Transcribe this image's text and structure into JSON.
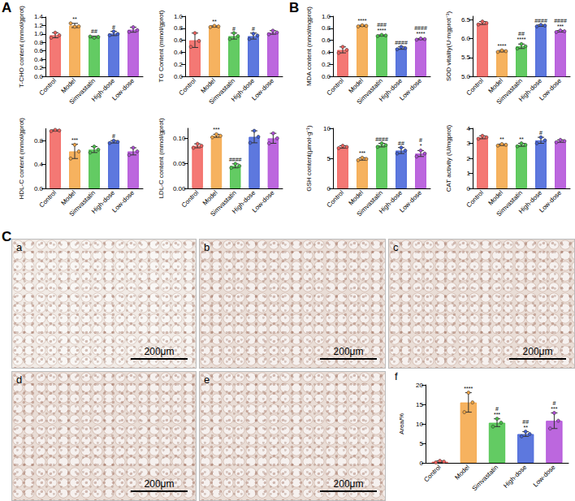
{
  "chart_data": [
    {
      "type": "bar",
      "ylabel": "T-CHO content (mmol/gprot)",
      "categories": [
        "Control",
        "Model",
        "Simvastatin",
        "High-dose",
        "Low-dose"
      ],
      "values": [
        0.97,
        1.2,
        0.93,
        1.01,
        1.1
      ],
      "errors": [
        0.06,
        0.05,
        0.02,
        0.05,
        0.06
      ],
      "points": [
        [
          0.91,
          1.03,
          0.97
        ],
        [
          1.25,
          1.17,
          1.18
        ],
        [
          0.94,
          0.91,
          0.93
        ],
        [
          0.97,
          1.06,
          1.0
        ],
        [
          1.05,
          1.16,
          1.09
        ]
      ],
      "annotations": [
        [],
        [
          "**"
        ],
        [
          "##"
        ],
        [
          "#"
        ],
        []
      ],
      "colors": [
        "#f2605c",
        "#f5a443",
        "#48c248",
        "#4160d8",
        "#b04cd8"
      ],
      "ylim": [
        0,
        1.4
      ],
      "yticks": [
        {
          "value": 0,
          "label": "0.0"
        },
        0.2,
        0.4,
        0.6,
        0.8,
        {
          "value": 1,
          "label": "1.0"
        },
        1.2,
        1.4
      ],
      "grid": false
    },
    {
      "type": "bar",
      "ylabel": "TG Content (mmol/gprot)",
      "categories": [
        "Control",
        "Model",
        "Simvastatin",
        "High-dose",
        "Low-dose"
      ],
      "values": [
        0.6,
        0.83,
        0.67,
        0.67,
        0.73
      ],
      "errors": [
        0.12,
        0.01,
        0.05,
        0.05,
        0.03
      ],
      "points": [
        [
          0.49,
          0.72,
          0.59
        ],
        [
          0.82,
          0.84,
          0.83
        ],
        [
          0.62,
          0.72,
          0.67
        ],
        [
          0.62,
          0.71,
          0.68
        ],
        [
          0.7,
          0.76,
          0.73
        ]
      ],
      "annotations": [
        [],
        [
          "**"
        ],
        [
          "#"
        ],
        [
          "#"
        ],
        []
      ],
      "colors": [
        "#f2605c",
        "#f5a443",
        "#48c248",
        "#4160d8",
        "#b04cd8"
      ],
      "ylim": [
        0,
        1.0
      ],
      "yticks": [
        {
          "value": 0,
          "label": "0.0"
        },
        0.2,
        0.4,
        0.6,
        0.8,
        {
          "value": 1,
          "label": "1.0"
        }
      ],
      "grid": false
    },
    {
      "type": "bar",
      "ylabel": "HDL-C content (mmol/gprot)",
      "categories": [
        "Control",
        "Model",
        "Simvastatin",
        "High-dose",
        "Low-dose"
      ],
      "values": [
        0.97,
        0.62,
        0.65,
        0.78,
        0.62
      ],
      "errors": [
        0.01,
        0.12,
        0.05,
        0.02,
        0.06
      ],
      "points": [
        [
          0.96,
          0.98,
          0.97
        ],
        [
          0.5,
          0.73,
          0.62
        ],
        [
          0.6,
          0.7,
          0.65
        ],
        [
          0.76,
          0.8,
          0.78
        ],
        [
          0.56,
          0.68,
          0.62
        ]
      ],
      "annotations": [
        [],
        [
          "***"
        ],
        [],
        [
          "#"
        ],
        []
      ],
      "colors": [
        "#f2605c",
        "#f5a443",
        "#48c248",
        "#4160d8",
        "#b04cd8"
      ],
      "ylim": [
        0,
        1.0
      ],
      "yticks": [
        {
          "value": 0,
          "label": "0.0"
        },
        0.4,
        0.8
      ],
      "grid": false
    },
    {
      "type": "bar",
      "ylabel": "LDL-C content (mmol/gprot)",
      "categories": [
        "Control",
        "Model",
        "Simvastatin",
        "High-dose",
        "Low-dose"
      ],
      "values": [
        0.085,
        0.105,
        0.045,
        0.103,
        0.1
      ],
      "errors": [
        0.004,
        0.003,
        0.004,
        0.012,
        0.01
      ],
      "points": [
        [
          0.081,
          0.089,
          0.085
        ],
        [
          0.102,
          0.108,
          0.105
        ],
        [
          0.041,
          0.049,
          0.045
        ],
        [
          0.091,
          0.115,
          0.103
        ],
        [
          0.09,
          0.11,
          0.1
        ]
      ],
      "annotations": [
        [],
        [
          "***"
        ],
        [
          "####"
        ],
        [],
        []
      ],
      "colors": [
        "#f2605c",
        "#f5a443",
        "#48c248",
        "#4160d8",
        "#b04cd8"
      ],
      "ylim": [
        0,
        0.12
      ],
      "yticks": [
        {
          "value": 0,
          "label": "0.00"
        },
        0.05,
        {
          "value": 0.1,
          "label": "0.10"
        }
      ],
      "grid": false
    },
    {
      "type": "bar",
      "ylabel": "MDA content (nmol/mgprot)",
      "categories": [
        "Control",
        "Model",
        "Simvastatin",
        "High-dose",
        "Low-dose"
      ],
      "values": [
        0.44,
        0.84,
        0.68,
        0.47,
        0.62
      ],
      "errors": [
        0.05,
        0.01,
        0.01,
        0.02,
        0.01
      ],
      "points": [
        [
          0.39,
          0.49,
          0.44
        ],
        [
          0.83,
          0.85,
          0.84
        ],
        [
          0.67,
          0.69,
          0.68
        ],
        [
          0.45,
          0.49,
          0.47
        ],
        [
          0.61,
          0.63,
          0.62
        ]
      ],
      "annotations": [
        [],
        [
          "****"
        ],
        [
          "###",
          "****"
        ],
        [
          "####"
        ],
        [
          "####",
          "****"
        ]
      ],
      "colors": [
        "#f2605c",
        "#f5a443",
        "#48c248",
        "#4160d8",
        "#b04cd8"
      ],
      "ylim": [
        0,
        1.0
      ],
      "yticks": [
        {
          "value": 0,
          "label": "0.0"
        },
        0.2,
        0.4,
        0.6,
        0.8,
        {
          "value": 1,
          "label": "1.0"
        }
      ],
      "grid": false
    },
    {
      "type": "bar",
      "ylabel": "SOD vitality(U·mgprot⁻¹)",
      "categories": [
        "Control",
        "Model",
        "Simvastatin",
        "High-dose",
        "Low-dose"
      ],
      "values": [
        6.42,
        5.67,
        5.8,
        6.35,
        6.2
      ],
      "errors": [
        0.04,
        0.02,
        0.06,
        0.02,
        0.02
      ],
      "points": [
        [
          6.38,
          6.46,
          6.42
        ],
        [
          5.65,
          5.69,
          5.67
        ],
        [
          5.74,
          5.86,
          5.8
        ],
        [
          6.33,
          6.37,
          6.35
        ],
        [
          6.18,
          6.22,
          6.2
        ]
      ],
      "annotations": [
        [],
        [
          "****"
        ],
        [
          "##",
          "****"
        ],
        [
          "####"
        ],
        [
          "####",
          "***"
        ]
      ],
      "colors": [
        "#f2605c",
        "#f5a443",
        "#48c248",
        "#4160d8",
        "#b04cd8"
      ],
      "ylim": [
        5,
        6.6
      ],
      "yticks": [
        {
          "value": 5,
          "label": "5.0"
        },
        5.5,
        {
          "value": 6,
          "label": "6.0"
        },
        6.5
      ],
      "grid": false
    },
    {
      "type": "bar",
      "ylabel": "GSH content(μmol·g⁻¹)",
      "categories": [
        "Control",
        "Model",
        "Simvastatin",
        "High-dose",
        "Low-dose"
      ],
      "values": [
        6.9,
        4.9,
        7.2,
        6.3,
        5.8
      ],
      "errors": [
        0.2,
        0.2,
        0.3,
        0.5,
        0.5
      ],
      "points": [
        [
          6.7,
          7.1,
          6.9
        ],
        [
          4.7,
          5.1,
          4.9
        ],
        [
          6.9,
          7.5,
          7.2
        ],
        [
          5.8,
          6.8,
          6.3
        ],
        [
          5.3,
          6.3,
          5.8
        ]
      ],
      "annotations": [
        [],
        [
          "***"
        ],
        [
          "####"
        ],
        [
          "##"
        ],
        [
          "#",
          "*"
        ]
      ],
      "colors": [
        "#f2605c",
        "#f5a443",
        "#48c248",
        "#4160d8",
        "#b04cd8"
      ],
      "ylim": [
        0,
        10
      ],
      "yticks": [
        0,
        5,
        10
      ],
      "grid": false
    },
    {
      "type": "bar",
      "ylabel": "CAT activity (U/mgprot)",
      "categories": [
        "Control",
        "Model",
        "Simvastatin",
        "High-dose",
        "Low-dose"
      ],
      "values": [
        3.4,
        2.9,
        2.9,
        3.2,
        3.15
      ],
      "errors": [
        0.1,
        0.05,
        0.1,
        0.2,
        0.08
      ],
      "points": [
        [
          3.3,
          3.5,
          3.4
        ],
        [
          2.85,
          2.95,
          2.9
        ],
        [
          2.8,
          3.0,
          2.9
        ],
        [
          3.0,
          3.4,
          3.2
        ],
        [
          3.07,
          3.23,
          3.15
        ]
      ],
      "annotations": [
        [],
        [
          "**"
        ],
        [
          "**"
        ],
        [
          "#"
        ],
        []
      ],
      "colors": [
        "#f2605c",
        "#f5a443",
        "#48c248",
        "#4160d8",
        "#b04cd8"
      ],
      "ylim": [
        0,
        4
      ],
      "yticks": [
        0,
        1,
        2,
        3,
        4
      ],
      "grid": false
    },
    {
      "type": "bar",
      "ylabel": "Area/%",
      "categories": [
        "Control",
        "Model",
        "Simvastatin",
        "High-dose",
        "Low-dose"
      ],
      "values": [
        0.3,
        15.5,
        10.3,
        7.4,
        10.8
      ],
      "errors": [
        0.2,
        2.5,
        1.0,
        0.6,
        2.0
      ],
      "points": [
        [
          0.1,
          0.5,
          0.3
        ],
        [
          13.0,
          18.0,
          15.5
        ],
        [
          9.3,
          11.3,
          10.3
        ],
        [
          6.8,
          8.0,
          7.4
        ],
        [
          8.8,
          12.8,
          10.8
        ]
      ],
      "annotations": [
        [],
        [
          "****"
        ],
        [
          "#",
          "***"
        ],
        [
          "##",
          "**"
        ],
        [
          "#",
          "***"
        ]
      ],
      "colors": [
        "#f2605c",
        "#f5a443",
        "#48c248",
        "#4160d8",
        "#b04cd8"
      ],
      "ylim": [
        0,
        20
      ],
      "yticks": [
        0,
        5,
        10,
        15,
        20
      ],
      "grid": false
    }
  ],
  "figure": {
    "panel_labels": [
      "A",
      "B",
      "C"
    ],
    "sublabels": [
      "a",
      "b",
      "c",
      "d",
      "e",
      "f"
    ],
    "scale_bar": "200μm"
  }
}
